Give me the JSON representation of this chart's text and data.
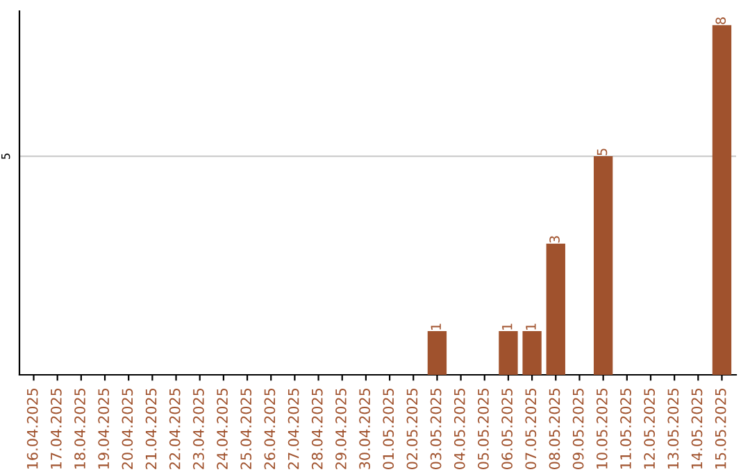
{
  "chart_data": {
    "type": "bar",
    "categories": [
      "16.04.2025",
      "17.04.2025",
      "18.04.2025",
      "19.04.2025",
      "20.04.2025",
      "21.04.2025",
      "22.04.2025",
      "23.04.2025",
      "24.04.2025",
      "25.04.2025",
      "26.04.2025",
      "27.04.2025",
      "28.04.2025",
      "29.04.2025",
      "30.04.2025",
      "01.05.2025",
      "02.05.2025",
      "03.05.2025",
      "04.05.2025",
      "05.05.2025",
      "06.05.2025",
      "07.05.2025",
      "08.05.2025",
      "09.05.2025",
      "10.05.2025",
      "11.05.2025",
      "12.05.2025",
      "13.05.2025",
      "14.05.2025",
      "15.05.2025"
    ],
    "values": [
      null,
      null,
      null,
      null,
      null,
      null,
      null,
      null,
      null,
      null,
      null,
      null,
      null,
      null,
      null,
      null,
      null,
      1,
      null,
      null,
      1,
      1,
      3,
      null,
      5,
      null,
      null,
      null,
      null,
      8
    ],
    "value_labels": [
      null,
      null,
      null,
      null,
      null,
      null,
      null,
      null,
      null,
      null,
      null,
      null,
      null,
      null,
      null,
      null,
      null,
      "1",
      null,
      null,
      "1",
      "1",
      "3",
      null,
      "5",
      null,
      null,
      null,
      null,
      "8"
    ],
    "color": "#a0522d",
    "ref_lines": [
      {
        "axis": "y",
        "value": 5,
        "label": "5",
        "color": "#cccccc"
      }
    ]
  }
}
